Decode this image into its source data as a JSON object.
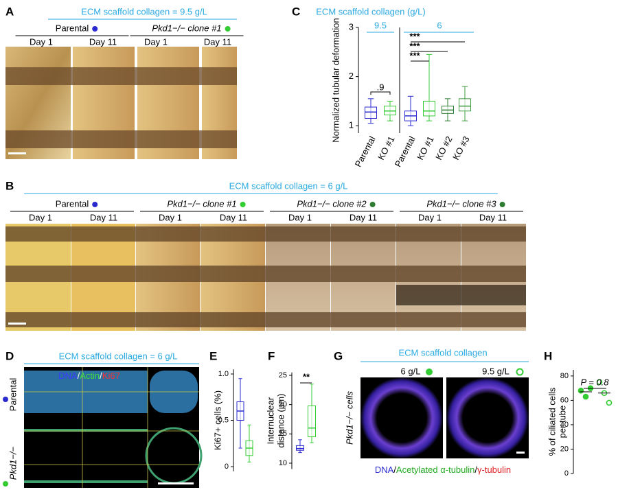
{
  "panel_labels": [
    "A",
    "B",
    "C",
    "D",
    "E",
    "F",
    "G",
    "H"
  ],
  "panel_a": {
    "header": "ECM scaffold collagen = 9.5 g/L",
    "groups": [
      {
        "label": "Parental",
        "days": [
          "Day 1",
          "Day 11"
        ]
      },
      {
        "label": "Pkd1−/− clone #1",
        "days": [
          "Day 1",
          "Day 11"
        ]
      }
    ]
  },
  "panel_b": {
    "header": "ECM scaffold collagen = 6 g/L",
    "groups": [
      {
        "label": "Parental",
        "days": [
          "Day 1",
          "Day 11"
        ]
      },
      {
        "label": "Pkd1−/− clone #1",
        "days": [
          "Day 1",
          "Day 11"
        ]
      },
      {
        "label": "Pkd1−/− clone #2",
        "days": [
          "Day 1",
          "Day 11"
        ]
      },
      {
        "label": "Pkd1−/− clone #3",
        "days": [
          "Day 1",
          "Day 11"
        ]
      }
    ]
  },
  "panel_d": {
    "header": "ECM scaffold collagen = 6 g/L",
    "stain": [
      "DNA",
      "/",
      "Actin",
      "/",
      "Ki67"
    ],
    "rows": [
      "Parental",
      "Pkd1−/−"
    ]
  },
  "panel_g": {
    "header": "ECM scaffold collagen",
    "columns": [
      "6 g/L",
      "9.5 g/L"
    ],
    "row": "Pkd1−/− cells",
    "stain": [
      "DNA",
      "/",
      "Acetylated α-tubulin",
      "/",
      "γ-tubulin"
    ]
  },
  "chart_data": [
    {
      "type": "box",
      "title": "ECM scaffold collagen (g/L)",
      "group_labels": [
        "9.5",
        "6"
      ],
      "ylabel": "Normalized tubular deformation",
      "categories": [
        "Parental",
        "KO #1",
        "Parental",
        "KO #1",
        "KO #2",
        "KO #3"
      ],
      "colors": [
        "#2a2ad0",
        "#33cc33",
        "#2a2ad0",
        "#33cc33",
        "#2e7d32",
        "#3f9a3f"
      ],
      "boxes": [
        {
          "min": 1.05,
          "q1": 1.15,
          "median": 1.28,
          "q3": 1.38,
          "max": 1.55
        },
        {
          "min": 1.1,
          "q1": 1.22,
          "median": 1.3,
          "q3": 1.4,
          "max": 1.5
        },
        {
          "min": 1.0,
          "q1": 1.1,
          "median": 1.2,
          "q3": 1.3,
          "max": 1.6
        },
        {
          "min": 1.1,
          "q1": 1.2,
          "median": 1.3,
          "q3": 1.5,
          "max": 2.45
        },
        {
          "min": 1.1,
          "q1": 1.25,
          "median": 1.32,
          "q3": 1.4,
          "max": 1.55
        },
        {
          "min": 1.1,
          "q1": 1.3,
          "median": 1.4,
          "q3": 1.55,
          "max": 1.8
        }
      ],
      "annotations": [
        ".9",
        "***",
        "***",
        "***"
      ],
      "ylim": [
        0.85,
        3.0
      ],
      "yticks": [
        1,
        2,
        3
      ]
    },
    {
      "type": "box",
      "ylabel": "Ki67+ cells (%)",
      "colors": [
        "#2a2ad0",
        "#33cc33"
      ],
      "boxes": [
        {
          "min": 0.2,
          "q1": 0.5,
          "median": 0.6,
          "q3": 0.7,
          "max": 0.95
        },
        {
          "min": 0.05,
          "q1": 0.12,
          "median": 0.2,
          "q3": 0.28,
          "max": 0.45
        }
      ],
      "ylim": [
        -0.05,
        1.05
      ],
      "yticks": [
        0,
        0.5,
        {
          "value": 1,
          "label": "1.0"
        }
      ]
    },
    {
      "type": "box",
      "ylabel": [
        "Internuclear",
        "distance (μm)"
      ],
      "colors": [
        "#2a2ad0",
        "#33cc33"
      ],
      "boxes": [
        {
          "min": 11.8,
          "q1": 12.2,
          "median": 12.5,
          "q3": 13,
          "max": 14
        },
        {
          "min": 13.5,
          "q1": 14.5,
          "median": 16,
          "q3": 19.8,
          "max": 23.5
        }
      ],
      "annotations": [
        "**"
      ],
      "ylim": [
        9,
        25.5
      ],
      "yticks": [
        10,
        15,
        20,
        25
      ]
    },
    {
      "type": "dot",
      "ylabel": [
        "% of ciliated cells",
        "per tube"
      ],
      "series": [
        {
          "color": "#33cc33",
          "filled": true,
          "values": [
            68,
            63,
            70
          ],
          "mean": 67
        },
        {
          "color": "#33cc33",
          "filled": false,
          "values": [
            75,
            66,
            58
          ],
          "mean": 66
        }
      ],
      "annotations": [
        "P = 0.8"
      ],
      "ylim": [
        0,
        85
      ],
      "yticks": [
        0,
        20,
        40,
        60,
        80
      ]
    }
  ]
}
